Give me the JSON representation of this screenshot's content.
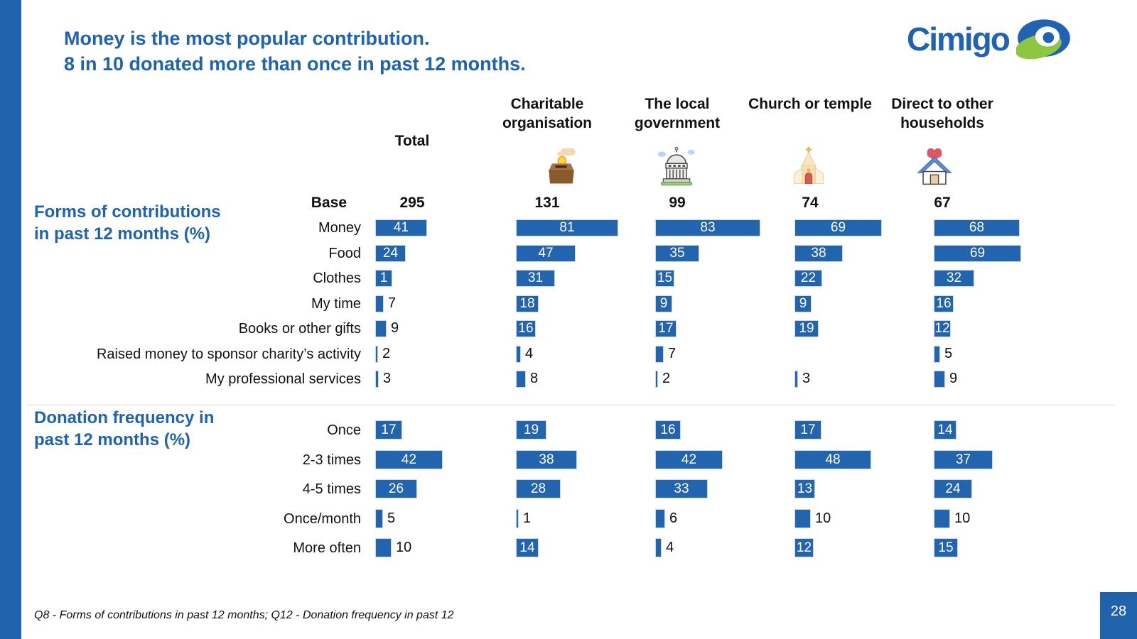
{
  "title": {
    "line1": "Money is the most popular contribution.",
    "line2": "8 in 10 donated more than once in past 12 months."
  },
  "logo": {
    "text": "Cimigo"
  },
  "base_label": "Base",
  "columns": [
    {
      "header": "Total",
      "base": "295",
      "icon": null
    },
    {
      "header": "Charitable organisation",
      "base": "131",
      "icon": "donation-box-icon"
    },
    {
      "header": "The local government",
      "base": "99",
      "icon": "government-building-icon"
    },
    {
      "header": "Church or temple",
      "base": "74",
      "icon": "church-icon"
    },
    {
      "header": "Direct to other households",
      "base": "67",
      "icon": "house-heart-icon"
    }
  ],
  "sections": [
    {
      "title_line1": "Forms of contributions",
      "title_line2": "in past 12 months (%)",
      "rows": [
        {
          "label": "Money",
          "values": [
            41,
            81,
            83,
            69,
            68
          ],
          "outside": [
            false,
            false,
            false,
            false,
            false
          ]
        },
        {
          "label": "Food",
          "values": [
            24,
            47,
            35,
            38,
            69
          ],
          "outside": [
            false,
            false,
            false,
            false,
            false
          ]
        },
        {
          "label": "Clothes",
          "values": [
            1,
            31,
            15,
            22,
            32
          ],
          "outside": [
            false,
            false,
            false,
            false,
            false
          ]
        },
        {
          "label": "My time",
          "values": [
            7,
            18,
            9,
            9,
            16
          ],
          "outside": [
            true,
            false,
            false,
            false,
            false
          ]
        },
        {
          "label": "Books or other gifts",
          "values": [
            9,
            16,
            17,
            19,
            12
          ],
          "outside": [
            true,
            false,
            false,
            false,
            false
          ]
        },
        {
          "label": "Raised money to sponsor charity’s activity",
          "values": [
            2,
            4,
            7,
            null,
            5
          ],
          "outside": [
            true,
            true,
            true,
            true,
            true
          ]
        },
        {
          "label": "My professional services",
          "values": [
            3,
            8,
            2,
            3,
            9
          ],
          "outside": [
            true,
            true,
            true,
            true,
            true
          ]
        }
      ]
    },
    {
      "title_line1": "Donation frequency in",
      "title_line2": "past 12 months (%)",
      "rows": [
        {
          "label": "Once",
          "values": [
            17,
            19,
            16,
            17,
            14
          ],
          "outside": [
            false,
            false,
            false,
            false,
            false
          ]
        },
        {
          "label": "2-3 times",
          "values": [
            42,
            38,
            42,
            48,
            37
          ],
          "outside": [
            false,
            false,
            false,
            false,
            false
          ]
        },
        {
          "label": "4-5 times",
          "values": [
            26,
            28,
            33,
            13,
            24
          ],
          "outside": [
            false,
            false,
            false,
            false,
            false
          ]
        },
        {
          "label": "Once/month",
          "values": [
            5,
            1,
            6,
            10,
            10
          ],
          "outside": [
            true,
            true,
            true,
            true,
            true
          ]
        },
        {
          "label": "More often",
          "values": [
            10,
            14,
            4,
            12,
            15
          ],
          "outside": [
            true,
            false,
            true,
            false,
            false
          ]
        }
      ]
    }
  ],
  "footer": "Q8 - Forms of contributions in past 12 months; Q12 - Donation frequency in past 12",
  "page_number": "28",
  "colors": {
    "bar": "#2264ae",
    "accent_text": "#1e63b2",
    "strip": "#2163ac",
    "logo_green": "#8dc63f",
    "logo_blue": "#2063b4"
  },
  "chart_data": [
    {
      "type": "bar",
      "title": "Forms of contributions in past 12 months (%)",
      "orientation": "horizontal",
      "categories": [
        "Money",
        "Food",
        "Clothes",
        "My time",
        "Books or other gifts",
        "Raised money to sponsor charity’s activity",
        "My professional services"
      ],
      "series": [
        {
          "name": "Total",
          "base": 295,
          "values": [
            41,
            24,
            1,
            7,
            9,
            2,
            3
          ]
        },
        {
          "name": "Charitable organisation",
          "base": 131,
          "values": [
            81,
            47,
            31,
            18,
            16,
            4,
            8
          ]
        },
        {
          "name": "The local government",
          "base": 99,
          "values": [
            83,
            35,
            15,
            9,
            17,
            7,
            2
          ]
        },
        {
          "name": "Church or temple",
          "base": 74,
          "values": [
            69,
            38,
            22,
            9,
            19,
            null,
            3
          ]
        },
        {
          "name": "Direct to other households",
          "base": 67,
          "values": [
            68,
            69,
            32,
            16,
            12,
            5,
            9
          ]
        }
      ],
      "xlim": [
        0,
        100
      ],
      "grid": false,
      "legend": "column headers"
    },
    {
      "type": "bar",
      "title": "Donation frequency in past 12 months (%)",
      "orientation": "horizontal",
      "categories": [
        "Once",
        "2-3 times",
        "4-5 times",
        "Once/month",
        "More often"
      ],
      "series": [
        {
          "name": "Total",
          "values": [
            17,
            42,
            26,
            5,
            10
          ]
        },
        {
          "name": "Charitable organisation",
          "values": [
            19,
            38,
            28,
            1,
            14
          ]
        },
        {
          "name": "The local government",
          "values": [
            16,
            42,
            33,
            6,
            4
          ]
        },
        {
          "name": "Church or temple",
          "values": [
            17,
            48,
            13,
            10,
            12
          ]
        },
        {
          "name": "Direct to other households",
          "values": [
            14,
            37,
            24,
            10,
            15
          ]
        }
      ],
      "xlim": [
        0,
        100
      ],
      "grid": false,
      "legend": "column headers"
    }
  ]
}
